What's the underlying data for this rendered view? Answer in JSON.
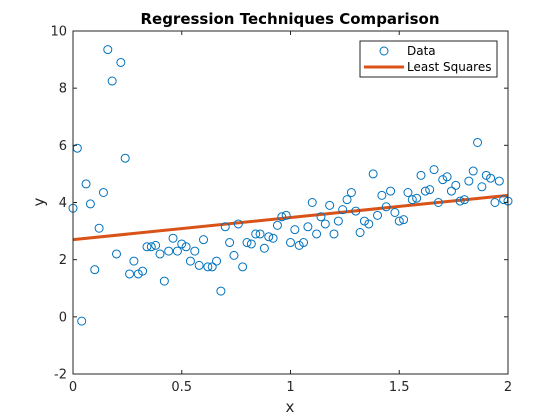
{
  "chart_data": {
    "type": "scatter",
    "title": "Regression Techniques Comparison",
    "xlabel": "x",
    "ylabel": "y",
    "xlim": [
      0,
      2
    ],
    "ylim": [
      -2,
      10
    ],
    "xticks": [
      "0",
      "0.5",
      "1",
      "1.5",
      "2"
    ],
    "yticks": [
      "-2",
      "0",
      "2",
      "4",
      "6",
      "8",
      "10"
    ],
    "grid": false,
    "legend_position": "top-right",
    "series": [
      {
        "name": "Data",
        "kind": "scatter",
        "marker": "circle-open",
        "color": "#0072BD",
        "x": [
          0.0,
          0.02,
          0.04,
          0.06,
          0.08,
          0.1,
          0.12,
          0.14,
          0.16,
          0.18,
          0.2,
          0.22,
          0.24,
          0.26,
          0.28,
          0.3,
          0.32,
          0.34,
          0.36,
          0.38,
          0.4,
          0.42,
          0.44,
          0.46,
          0.48,
          0.5,
          0.52,
          0.54,
          0.56,
          0.58,
          0.6,
          0.62,
          0.64,
          0.66,
          0.68,
          0.7,
          0.72,
          0.74,
          0.76,
          0.78,
          0.8,
          0.82,
          0.84,
          0.86,
          0.88,
          0.9,
          0.92,
          0.94,
          0.96,
          0.98,
          1.0,
          1.02,
          1.04,
          1.06,
          1.08,
          1.1,
          1.12,
          1.14,
          1.16,
          1.18,
          1.2,
          1.22,
          1.24,
          1.26,
          1.28,
          1.3,
          1.32,
          1.34,
          1.36,
          1.38,
          1.4,
          1.42,
          1.44,
          1.46,
          1.48,
          1.5,
          1.52,
          1.54,
          1.56,
          1.58,
          1.6,
          1.62,
          1.64,
          1.66,
          1.68,
          1.7,
          1.72,
          1.74,
          1.76,
          1.78,
          1.8,
          1.82,
          1.84,
          1.86,
          1.88,
          1.9,
          1.92,
          1.94,
          1.96,
          1.98,
          2.0
        ],
        "y": [
          3.8,
          5.9,
          -0.15,
          4.65,
          3.95,
          1.65,
          3.1,
          4.35,
          9.35,
          8.25,
          2.2,
          8.9,
          5.55,
          1.5,
          1.95,
          1.5,
          1.6,
          2.45,
          2.45,
          2.5,
          2.2,
          1.25,
          2.3,
          2.75,
          2.3,
          2.55,
          2.45,
          1.95,
          2.3,
          1.8,
          2.7,
          1.75,
          1.75,
          1.95,
          0.9,
          3.15,
          2.6,
          2.15,
          3.25,
          1.75,
          2.6,
          2.55,
          2.9,
          2.9,
          2.4,
          2.8,
          2.75,
          3.2,
          3.5,
          3.55,
          2.6,
          3.05,
          2.5,
          2.6,
          3.15,
          4.0,
          2.9,
          3.5,
          3.25,
          3.9,
          2.9,
          3.35,
          3.75,
          4.1,
          4.35,
          3.7,
          2.95,
          3.35,
          3.25,
          5.0,
          3.55,
          4.25,
          3.85,
          4.4,
          3.65,
          3.35,
          3.4,
          4.35,
          4.1,
          4.15,
          4.95,
          4.4,
          4.45,
          5.15,
          4.0,
          4.8,
          4.9,
          4.4,
          4.6,
          4.05,
          4.1,
          4.75,
          5.1,
          6.1,
          4.55,
          4.95,
          4.85,
          4.0,
          4.75,
          4.1,
          4.05
        ]
      },
      {
        "name": "Least Squares",
        "kind": "line",
        "color": "#D95319",
        "x": [
          0,
          2
        ],
        "y": [
          2.7,
          4.25
        ]
      }
    ]
  }
}
